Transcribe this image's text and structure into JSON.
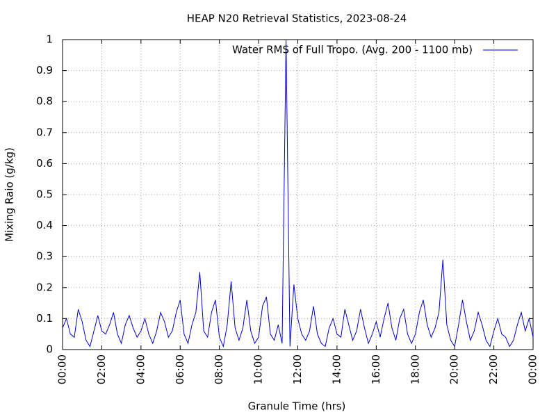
{
  "chart_data": {
    "type": "line",
    "title": "HEAP N20 Retrieval Statistics, 2023-08-24",
    "x_label": "Granule Time (hrs)",
    "y_label": "Mixing Raio (g/kg)",
    "x": [
      0,
      0.2,
      0.4,
      0.6,
      0.8,
      1,
      1.2,
      1.4,
      1.6,
      1.8,
      2,
      2.2,
      2.4,
      2.6,
      2.8,
      3,
      3.2,
      3.4,
      3.6,
      3.8,
      4,
      4.2,
      4.4,
      4.6,
      4.8,
      5,
      5.2,
      5.4,
      5.6,
      5.8,
      6,
      6.2,
      6.4,
      6.6,
      6.8,
      7,
      7.2,
      7.4,
      7.6,
      7.8,
      8,
      8.2,
      8.4,
      8.6,
      8.8,
      9,
      9.2,
      9.4,
      9.6,
      9.8,
      10,
      10.2,
      10.4,
      10.6,
      10.8,
      11,
      11.2,
      11.4,
      11.6,
      11.8,
      12,
      12.2,
      12.4,
      12.6,
      12.8,
      13,
      13.2,
      13.4,
      13.6,
      13.8,
      14,
      14.2,
      14.4,
      14.6,
      14.8,
      15,
      15.2,
      15.4,
      15.6,
      15.8,
      16,
      16.2,
      16.4,
      16.6,
      16.8,
      17,
      17.2,
      17.4,
      17.6,
      17.8,
      18,
      18.2,
      18.4,
      18.6,
      18.8,
      19,
      19.2,
      19.4,
      19.6,
      19.8,
      20,
      20.2,
      20.4,
      20.6,
      20.8,
      21,
      21.2,
      21.4,
      21.6,
      21.8,
      22,
      22.2,
      22.4,
      22.6,
      22.8,
      23,
      23.2,
      23.4,
      23.6,
      23.8,
      24
    ],
    "series": [
      {
        "name": "Water RMS of Full Tropo. (Avg. 200 - 1100 mb)",
        "color": "#0000cc",
        "values": [
          0.07,
          0.1,
          0.05,
          0.04,
          0.13,
          0.09,
          0.03,
          0.01,
          0.06,
          0.11,
          0.06,
          0.05,
          0.08,
          0.12,
          0.05,
          0.02,
          0.08,
          0.11,
          0.07,
          0.04,
          0.06,
          0.1,
          0.05,
          0.02,
          0.06,
          0.12,
          0.09,
          0.04,
          0.06,
          0.12,
          0.16,
          0.05,
          0.02,
          0.08,
          0.12,
          0.25,
          0.06,
          0.04,
          0.12,
          0.16,
          0.04,
          0.01,
          0.08,
          0.22,
          0.07,
          0.03,
          0.07,
          0.16,
          0.06,
          0.02,
          0.04,
          0.14,
          0.17,
          0.05,
          0.03,
          0.08,
          0.02,
          1.0,
          0.01,
          0.21,
          0.1,
          0.05,
          0.03,
          0.06,
          0.14,
          0.05,
          0.02,
          0.01,
          0.07,
          0.1,
          0.05,
          0.04,
          0.13,
          0.08,
          0.03,
          0.06,
          0.13,
          0.07,
          0.02,
          0.05,
          0.09,
          0.04,
          0.1,
          0.15,
          0.07,
          0.03,
          0.1,
          0.13,
          0.05,
          0.02,
          0.05,
          0.12,
          0.16,
          0.08,
          0.04,
          0.07,
          0.12,
          0.29,
          0.08,
          0.03,
          0.01,
          0.08,
          0.16,
          0.09,
          0.03,
          0.06,
          0.12,
          0.08,
          0.03,
          0.01,
          0.06,
          0.1,
          0.05,
          0.04,
          0.01,
          0.03,
          0.08,
          0.12,
          0.06,
          0.1,
          0.04
        ]
      }
    ],
    "xlim": [
      0,
      24
    ],
    "xticks": [
      {
        "value": 0,
        "label": "00:00"
      },
      {
        "value": 2,
        "label": "02:00"
      },
      {
        "value": 4,
        "label": "04:00"
      },
      {
        "value": 6,
        "label": "06:00"
      },
      {
        "value": 8,
        "label": "08:00"
      },
      {
        "value": 10,
        "label": "10:00"
      },
      {
        "value": 12,
        "label": "12:00"
      },
      {
        "value": 14,
        "label": "14:00"
      },
      {
        "value": 16,
        "label": "16:00"
      },
      {
        "value": 18,
        "label": "18:00"
      },
      {
        "value": 20,
        "label": "20:00"
      },
      {
        "value": 22,
        "label": "22:00"
      },
      {
        "value": 24,
        "label": "00:00"
      }
    ],
    "ylim": [
      0,
      1
    ],
    "yticks": [
      0,
      0.1,
      0.2,
      0.3,
      0.4,
      0.5,
      0.6,
      0.7,
      0.8,
      0.9,
      1
    ],
    "grid": true,
    "legend": "top-right"
  }
}
